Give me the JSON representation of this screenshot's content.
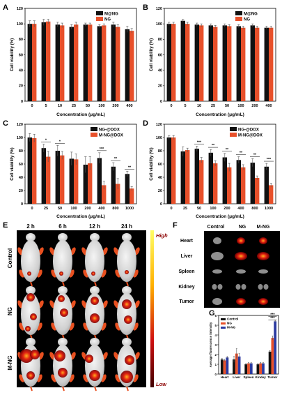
{
  "colors": {
    "black_bar": "#111111",
    "red_bar": "#e8502a",
    "blue_bar": "#2b3aa0"
  },
  "chart_data": [
    {
      "panel": "A",
      "type": "bar",
      "categories": [
        "0",
        "5",
        "10",
        "25",
        "50",
        "100",
        "200",
        "400"
      ],
      "ylabel": "Cell viability (%)",
      "xlabel": "Concentration (μg/mL)",
      "ylim": [
        0,
        120
      ],
      "yticks": [
        0,
        20,
        40,
        60,
        80,
        100,
        120
      ],
      "legend_position": "top-right",
      "series": [
        {
          "name": "M@NG",
          "color": "#111111",
          "values": [
            100,
            102,
            99,
            96,
            99,
            97,
            99,
            93
          ],
          "err": [
            4,
            4,
            3,
            3,
            2,
            2,
            3,
            4
          ]
        },
        {
          "name": "NG",
          "color": "#e8502a",
          "values": [
            100,
            103,
            98,
            99,
            99,
            98,
            96,
            91
          ],
          "err": [
            4,
            3,
            3,
            3,
            2,
            2,
            3,
            3
          ]
        }
      ],
      "annotations": []
    },
    {
      "panel": "B",
      "type": "bar",
      "categories": [
        "0",
        "5",
        "10",
        "25",
        "50",
        "100",
        "200",
        "400"
      ],
      "ylabel": "Cell viability (%)",
      "xlabel": "Concentration (μg/mL)",
      "ylim": [
        0,
        120
      ],
      "yticks": [
        0,
        20,
        40,
        60,
        80,
        100,
        120
      ],
      "legend_position": "top-right",
      "series": [
        {
          "name": "M@NG",
          "color": "#111111",
          "values": [
            100,
            104,
            99,
            98,
            98,
            97,
            98,
            95
          ],
          "err": [
            2,
            2,
            2,
            2,
            2,
            2,
            2,
            2
          ]
        },
        {
          "name": "NG",
          "color": "#e8502a",
          "values": [
            100,
            100,
            98,
            96,
            97,
            95,
            95,
            95
          ],
          "err": [
            2,
            2,
            2,
            2,
            2,
            2,
            2,
            2
          ]
        }
      ],
      "annotations": []
    },
    {
      "panel": "C",
      "type": "bar",
      "categories": [
        "0",
        "25",
        "50",
        "100",
        "200",
        "400",
        "800",
        "1000"
      ],
      "ylabel": "Cell viability (%)",
      "xlabel": "Concentration (μg/mL)",
      "ylim": [
        0,
        120
      ],
      "yticks": [
        0,
        20,
        40,
        60,
        80,
        100,
        120
      ],
      "legend_position": "top-right",
      "series": [
        {
          "name": "NG-@DOX",
          "color": "#111111",
          "values": [
            100,
            84,
            80,
            68,
            59,
            69,
            56,
            45
          ],
          "err": [
            6,
            6,
            8,
            10,
            12,
            8,
            6,
            4
          ]
        },
        {
          "name": "M-NG@DOX",
          "color": "#e8502a",
          "values": [
            99,
            71,
            73,
            67,
            61,
            28,
            30,
            23
          ],
          "err": [
            6,
            8,
            6,
            8,
            10,
            6,
            8,
            3
          ]
        }
      ],
      "annotations": [
        {
          "index": 1,
          "label": "*"
        },
        {
          "index": 2,
          "label": "*"
        },
        {
          "index": 5,
          "label": "***"
        },
        {
          "index": 6,
          "label": "**"
        },
        {
          "index": 7,
          "label": "**"
        }
      ]
    },
    {
      "panel": "D",
      "type": "bar",
      "categories": [
        "0",
        "25",
        "50",
        "100",
        "200",
        "400",
        "800",
        "1000"
      ],
      "ylabel": "Cell viability (%)",
      "xlabel": "Concentration (μg/mL)",
      "ylim": [
        0,
        120
      ],
      "yticks": [
        0,
        20,
        40,
        60,
        80,
        100,
        120
      ],
      "legend_position": "top-right",
      "series": [
        {
          "name": "NG-@DOX",
          "color": "#111111",
          "values": [
            100,
            79,
            83,
            77,
            70,
            66,
            62,
            56
          ],
          "err": [
            3,
            7,
            4,
            5,
            6,
            5,
            6,
            5
          ]
        },
        {
          "name": "M-NG@DOX",
          "color": "#e8502a",
          "values": [
            100,
            81,
            66,
            61,
            55,
            55,
            39,
            28
          ],
          "err": [
            3,
            3,
            4,
            4,
            6,
            4,
            3,
            3
          ]
        }
      ],
      "annotations": [
        {
          "index": 2,
          "label": "***"
        },
        {
          "index": 3,
          "label": "**"
        },
        {
          "index": 4,
          "label": "**"
        },
        {
          "index": 5,
          "label": "**"
        },
        {
          "index": 6,
          "label": "**"
        },
        {
          "index": 7,
          "label": "***"
        }
      ]
    },
    {
      "panel": "G",
      "type": "bar",
      "categories": [
        "Heart",
        "Liver",
        "Spleen",
        "Kindey",
        "Tumor"
      ],
      "ylabel": "Average fluorescence intensity",
      "xlabel": "",
      "ylim": [
        0,
        6
      ],
      "yticks": [
        0,
        1,
        2,
        3,
        4,
        5,
        6
      ],
      "legend_position": "top-left",
      "series": [
        {
          "name": "Control",
          "color": "#111111",
          "values": [
            1.5,
            1.5,
            1.0,
            1.0,
            2.3
          ],
          "err": [
            0.1,
            0.3,
            0.1,
            0.1,
            0.1
          ]
        },
        {
          "name": "NG",
          "color": "#e8502a",
          "values": [
            1.4,
            2.1,
            1.1,
            1.1,
            3.7
          ],
          "err": [
            0.1,
            0.5,
            0.1,
            0.1,
            0.2
          ]
        },
        {
          "name": "M-NG",
          "color": "#2b3aa0",
          "values": [
            1.7,
            1.8,
            1.1,
            1.1,
            5.4
          ],
          "err": [
            0.1,
            0.3,
            0.1,
            0.1,
            0.1
          ]
        }
      ],
      "annotations": [
        {
          "index": 4,
          "label": "***"
        },
        {
          "index": 4,
          "label": "***"
        }
      ]
    }
  ],
  "panel_e": {
    "label": "E",
    "times": [
      "2 h",
      "6 h",
      "12 h",
      "24 h"
    ],
    "rows": [
      "Control",
      "NG",
      "M-NG"
    ],
    "scale_high": "High",
    "scale_low": "Low"
  },
  "panel_f": {
    "label": "F",
    "columns": [
      "Control",
      "NG",
      "M-NG"
    ],
    "organs": [
      "Heart",
      "Liver",
      "Spleen",
      "Kidney",
      "Tumor"
    ]
  }
}
